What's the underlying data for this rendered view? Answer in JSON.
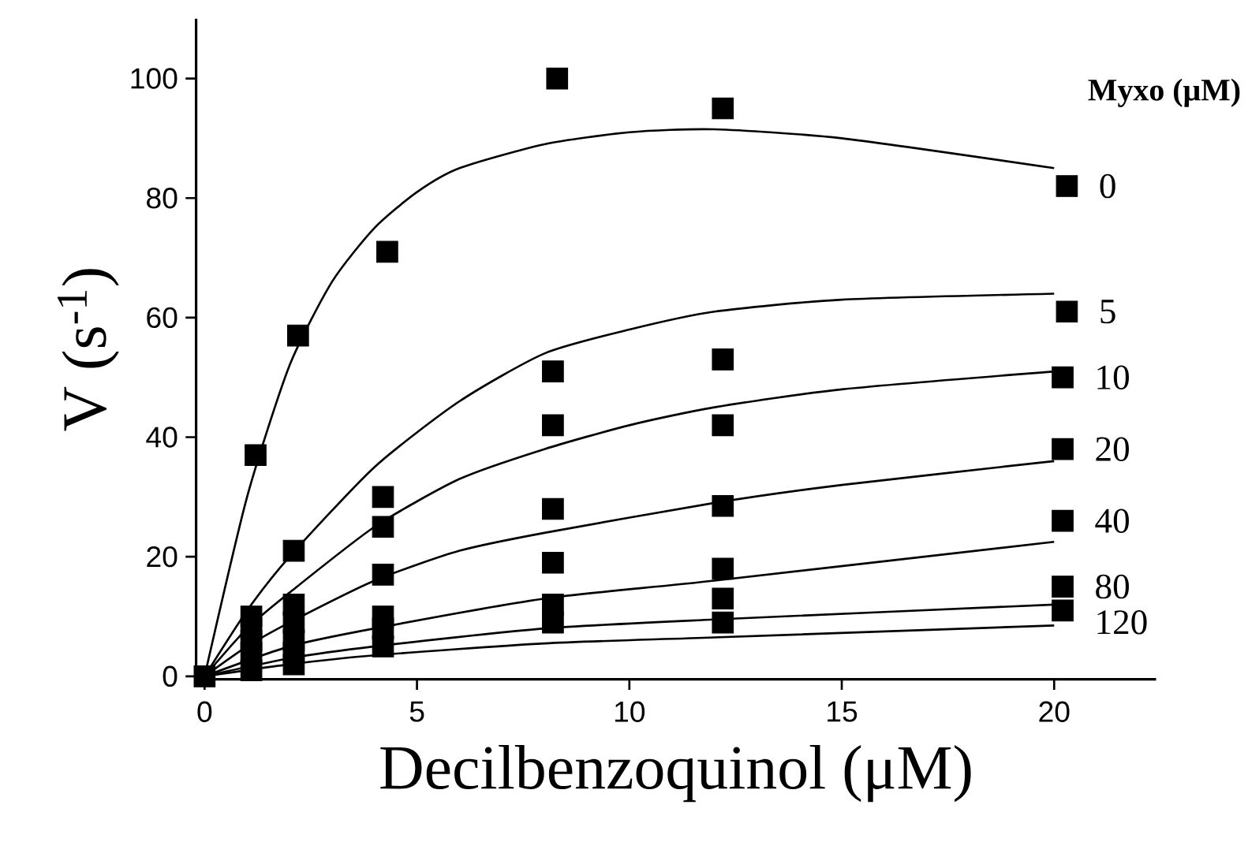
{
  "chart_data": {
    "type": "scatter",
    "xlabel": "Decilbenzoquinol (μM)",
    "ylabel": "V (s$^{-1}$)",
    "legend_title": "Myxo (μM)",
    "xlim": [
      -0.2,
      22.4
    ],
    "ylim": [
      -0.5,
      110
    ],
    "xticks": [
      0,
      5,
      10,
      15,
      20
    ],
    "yticks": [
      0,
      20,
      40,
      60,
      80,
      100
    ],
    "marker": "square",
    "legend": false,
    "grid": false,
    "series": [
      {
        "name": "0",
        "color": "#000000",
        "x": [
          0,
          1.2,
          2.2,
          4.3,
          8.3,
          12.2,
          20.3
        ],
        "values": [
          0,
          37,
          57,
          71,
          100,
          95,
          82
        ]
      },
      {
        "name": "5",
        "color": "#000000",
        "x": [
          1.1,
          2.1,
          4.2,
          8.2,
          12.2,
          20.3
        ],
        "values": [
          10,
          21,
          30,
          51,
          53,
          61
        ]
      },
      {
        "name": "10",
        "color": "#000000",
        "x": [
          1.1,
          2.1,
          4.2,
          8.2,
          12.2,
          20.2
        ],
        "values": [
          8,
          12,
          25,
          42,
          42,
          50
        ]
      },
      {
        "name": "20",
        "color": "#000000",
        "x": [
          1.1,
          2.1,
          4.2,
          8.2,
          12.2,
          20.2
        ],
        "values": [
          6,
          9,
          17,
          28,
          28.5,
          38
        ]
      },
      {
        "name": "40",
        "color": "#000000",
        "x": [
          1.1,
          2.1,
          4.2,
          8.2,
          12.2,
          20.2
        ],
        "values": [
          4,
          6,
          10,
          19,
          18,
          26
        ]
      },
      {
        "name": "80",
        "color": "#000000",
        "x": [
          2.1,
          4.2,
          8.2,
          12.2,
          20.2
        ],
        "values": [
          4,
          8,
          12,
          13,
          15
        ]
      },
      {
        "name": "120",
        "color": "#000000",
        "x": [
          1.1,
          2.1,
          4.2,
          8.2,
          12.2,
          20.2
        ],
        "values": [
          1,
          2,
          5,
          9,
          9,
          11
        ]
      },
      {
        "type": "line",
        "marker": "none",
        "color": "#000000",
        "x": [
          0,
          1,
          2,
          3,
          4,
          5,
          6,
          8,
          10,
          12,
          15,
          20
        ],
        "values": [
          0,
          30,
          52,
          66,
          75,
          81,
          85,
          89,
          91,
          91.5,
          90,
          85
        ]
      },
      {
        "type": "line",
        "marker": "none",
        "color": "#000000",
        "x": [
          0,
          1,
          2,
          4,
          6,
          8,
          10,
          12,
          15,
          20
        ],
        "values": [
          0,
          11,
          20,
          35,
          46,
          54,
          58,
          61,
          63,
          64
        ]
      },
      {
        "type": "line",
        "marker": "none",
        "color": "#000000",
        "x": [
          0,
          1,
          2,
          4,
          6,
          8,
          10,
          12,
          15,
          20
        ],
        "values": [
          0,
          8,
          14,
          25,
          33,
          38,
          42,
          45,
          48,
          51
        ]
      },
      {
        "type": "line",
        "marker": "none",
        "color": "#000000",
        "x": [
          0,
          1,
          2,
          4,
          6,
          8,
          12,
          15,
          20
        ],
        "values": [
          0,
          5,
          9,
          16,
          21,
          24,
          29,
          32,
          36
        ]
      },
      {
        "type": "line",
        "marker": "none",
        "color": "#000000",
        "x": [
          0,
          2,
          4,
          8,
          12,
          20
        ],
        "values": [
          0,
          5,
          8,
          13,
          16,
          22.5
        ]
      },
      {
        "type": "line",
        "marker": "none",
        "color": "#000000",
        "x": [
          0,
          2,
          4,
          8,
          12,
          20
        ],
        "values": [
          0,
          3,
          5,
          8,
          9.5,
          12
        ]
      },
      {
        "type": "line",
        "marker": "none",
        "color": "#000000",
        "x": [
          0,
          2,
          4,
          8,
          12,
          20
        ],
        "values": [
          0,
          2,
          3.5,
          5.5,
          6.5,
          8.5
        ]
      }
    ]
  }
}
